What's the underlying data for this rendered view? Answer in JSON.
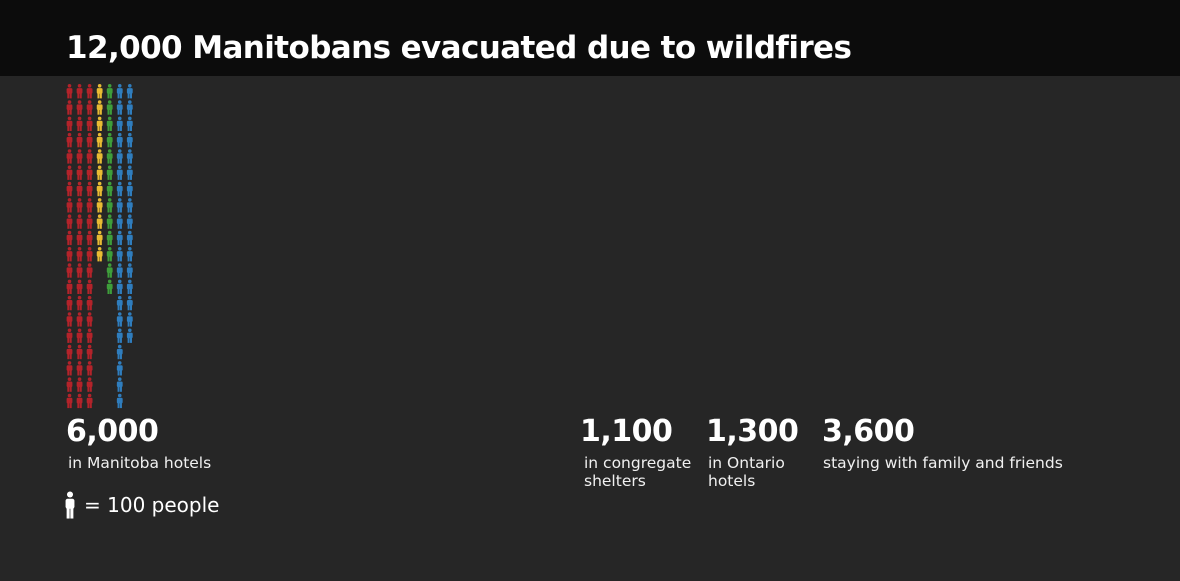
{
  "title": "12,000 Manitobans evacuated due to wildfires",
  "legend": {
    "text": "= 100 people",
    "icon": "person-icon"
  },
  "colors": {
    "red": "#b3232a",
    "yellow": "#e8bb33",
    "green": "#3e9e3a",
    "blue": "#2f7dbd"
  },
  "chart_data": {
    "type": "pictogram",
    "unit": 100,
    "title": "12,000 Manitobans evacuated due to wildfires",
    "categories": [
      {
        "value_label": "6,000",
        "label": "in Manitoba hotels",
        "value": 6000,
        "color": "#b3232a"
      },
      {
        "value_label": "1,100",
        "label": "in congregate shelters",
        "value": 1100,
        "color": "#e8bb33"
      },
      {
        "value_label": "1,300",
        "label": "in Ontario hotels",
        "value": 1300,
        "color": "#3e9e3a"
      },
      {
        "value_label": "3,600",
        "label": "staying with family and friends",
        "value": 3600,
        "color": "#2f7dbd"
      }
    ]
  }
}
